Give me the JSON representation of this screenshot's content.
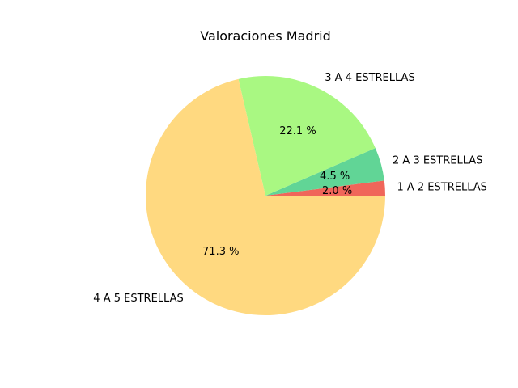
{
  "chart_data": {
    "type": "pie",
    "title": "Valoraciones Madrid",
    "slices": [
      {
        "label": "1 A 2 ESTRELLAS",
        "value": 2.0,
        "pct_label": "2.0 %",
        "color": "#f0665a"
      },
      {
        "label": "2 A 3 ESTRELLAS",
        "value": 4.5,
        "pct_label": "4.5 %",
        "color": "#61d596"
      },
      {
        "label": "3 A 4 ESTRELLAS",
        "value": 22.1,
        "pct_label": "22.1 %",
        "color": "#a9f882"
      },
      {
        "label": "4 A 5 ESTRELLAS",
        "value": 71.3,
        "pct_label": "71.3 %",
        "color": "#ffd980"
      }
    ],
    "start_angle_deg": 0,
    "direction": "counterclockwise"
  }
}
